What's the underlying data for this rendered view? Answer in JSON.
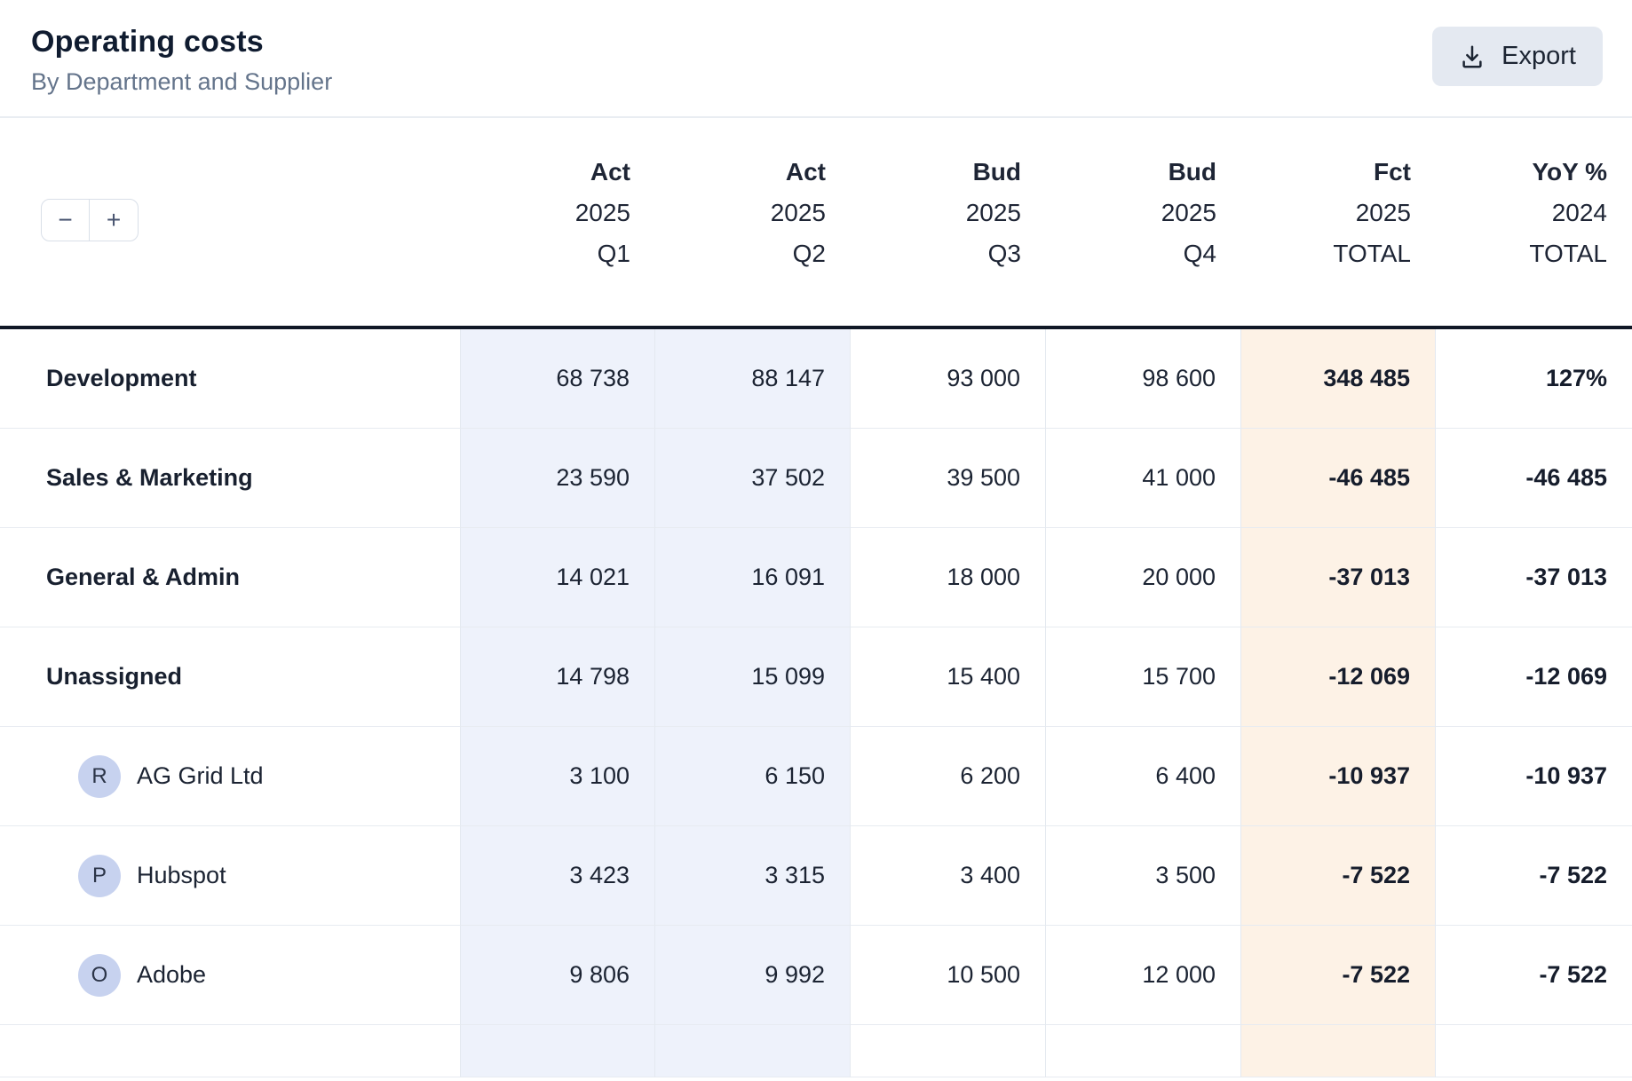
{
  "header": {
    "title": "Operating costs",
    "subtitle": "By Department and Supplier",
    "export_label": "Export"
  },
  "toolbar": {
    "collapse_label": "−",
    "expand_label": "+"
  },
  "colors": {
    "accent_column_blue": "#eef2fb",
    "forecast_column_cream": "#fdf2e6",
    "badge_blue": "#c7d2ef",
    "header_border_dark": "#101826",
    "button_gray": "#e4e9f1"
  },
  "table": {
    "columns": [
      {
        "line1": "Act",
        "line2": "2025",
        "line3": "Q1"
      },
      {
        "line1": "Act",
        "line2": "2025",
        "line3": "Q2"
      },
      {
        "line1": "Bud",
        "line2": "2025",
        "line3": "Q3"
      },
      {
        "line1": "Bud",
        "line2": "2025",
        "line3": "Q4"
      },
      {
        "line1": "Fct",
        "line2": "2025",
        "line3": "TOTAL"
      },
      {
        "line1": "YoY %",
        "line2": "2024",
        "line3": "TOTAL"
      }
    ],
    "rows": [
      {
        "type": "department",
        "label": "Development",
        "values": [
          "68 738",
          "88 147",
          "93 000",
          "98 600",
          "348 485",
          "127%"
        ]
      },
      {
        "type": "department",
        "label": "Sales & Marketing",
        "values": [
          "23 590",
          "37 502",
          "39 500",
          "41 000",
          "-46 485",
          "-46 485"
        ]
      },
      {
        "type": "department",
        "label": "General & Admin",
        "values": [
          "14 021",
          "16 091",
          "18 000",
          "20 000",
          "-37 013",
          "-37 013"
        ]
      },
      {
        "type": "department",
        "label": "Unassigned",
        "values": [
          "14 798",
          "15 099",
          "15 400",
          "15 700",
          "-12 069",
          "-12 069"
        ]
      },
      {
        "type": "supplier",
        "badge": "R",
        "label": "AG Grid Ltd",
        "values": [
          "3 100",
          "6 150",
          "6 200",
          "6 400",
          "-10 937",
          "-10 937"
        ]
      },
      {
        "type": "supplier",
        "badge": "P",
        "label": "Hubspot",
        "values": [
          "3 423",
          "3 315",
          "3 400",
          "3 500",
          "-7 522",
          "-7 522"
        ]
      },
      {
        "type": "supplier",
        "badge": "O",
        "label": "Adobe",
        "values": [
          "9 806",
          "9 992",
          "10 500",
          "12 000",
          "-7 522",
          "-7 522"
        ]
      },
      {
        "type": "empty",
        "label": "",
        "values": [
          "",
          "",
          "",
          "",
          "",
          ""
        ]
      }
    ]
  }
}
